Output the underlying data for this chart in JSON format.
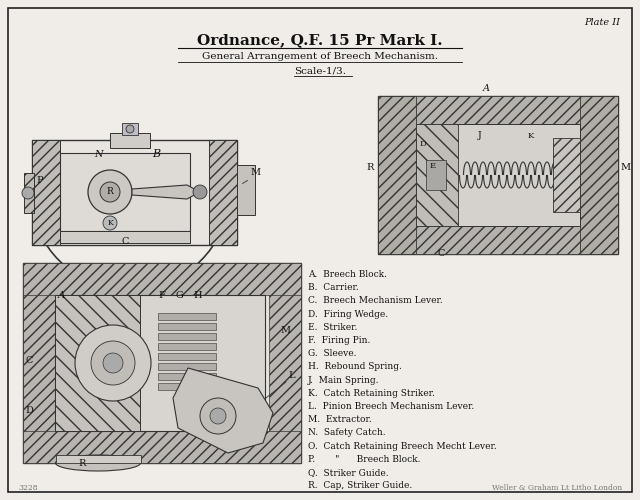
{
  "title_line1": "Ordnance, Q.F. 15 Pr Mark I.",
  "title_line2": "General Arrangement of Breech Mechanism.",
  "title_line3": "Scale-1/3.",
  "plate": "Plate II",
  "legend": [
    "A.  Breech Block.",
    "B.  Carrier.",
    "C.  Breech Mechanism Lever.",
    "D.  Firing Wedge.",
    "E.  Striker.",
    "F.  Firing Pin.",
    "G.  Sleeve.",
    "H.  Rebound Spring.",
    "J.  Main Spring.",
    "K.  Catch Retaining Striker.",
    "L.  Pinion Breech Mechanism Lever.",
    "M.  Extractor.",
    "N.  Safety Catch.",
    "O.  Catch Retaining Breech Mecht Lever.",
    "P.       \"      Breech Block.",
    "Q.  Striker Guide.",
    "R.  Cap, Striker Guide."
  ],
  "bg_color": "#f0ede8",
  "border_color": "#222222",
  "text_color": "#111111",
  "diagram_color": "#333333",
  "publisher": "Weller & Graham Lt Litho London",
  "page_num": "3228"
}
